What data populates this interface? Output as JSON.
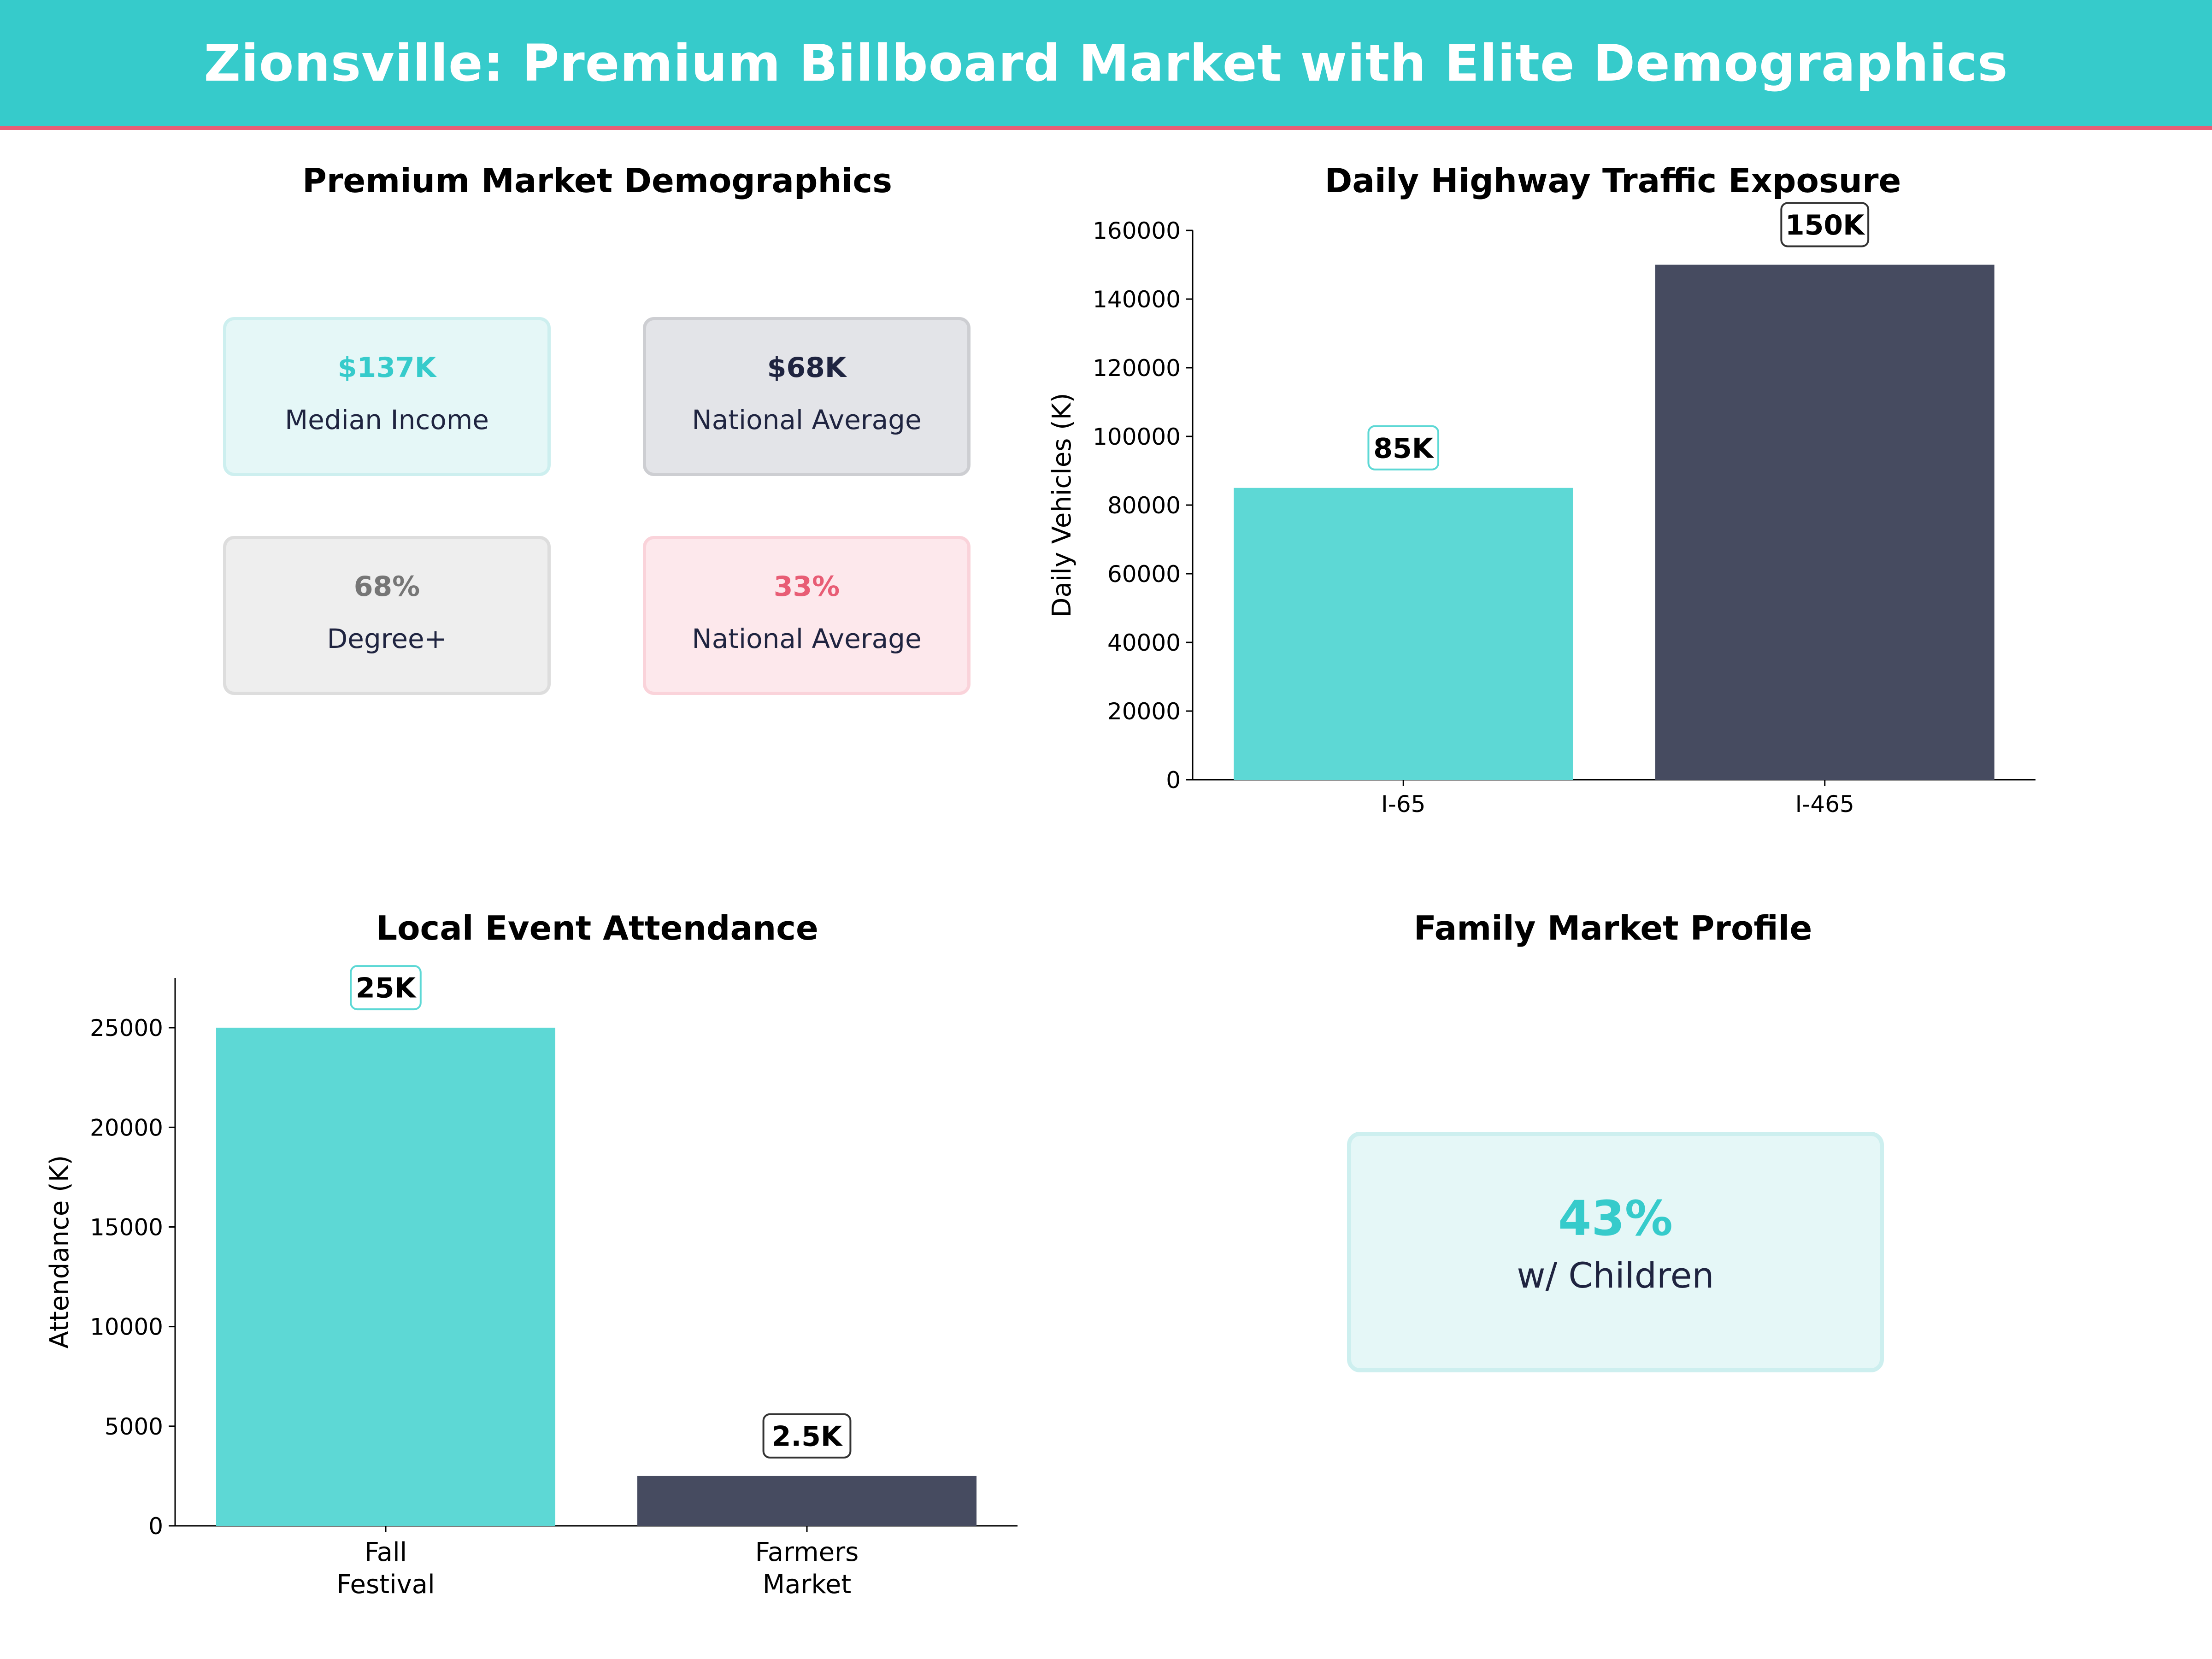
{
  "header": {
    "title": "Zionsville: Premium Billboard Market with Elite Demographics"
  },
  "colors": {
    "accent": "#36CBCB",
    "dark": "#464B60",
    "pink": "#E85D75",
    "gray": "#767676"
  },
  "demographics": {
    "title": "Premium Market Demographics",
    "cards": [
      {
        "value": "$137K",
        "label": "Median Income",
        "color": "#36CBCB"
      },
      {
        "value": "$68K",
        "label": "National Average",
        "color": "#1F2440"
      },
      {
        "value": "68%",
        "label": "Degree+",
        "color": "#767676"
      },
      {
        "value": "33%",
        "label": "National Average",
        "color": "#E85D75"
      }
    ]
  },
  "family": {
    "title": "Family Market Profile",
    "value": "43%",
    "label": "w/ Children"
  },
  "chart_data": [
    {
      "type": "bar",
      "title": "Daily Highway Traffic Exposure",
      "xlabel": "",
      "ylabel": "Daily Vehicles (K)",
      "categories": [
        "I-65",
        "I-465"
      ],
      "values": [
        85000,
        150000
      ],
      "data_labels": [
        "85K",
        "150K"
      ],
      "colors": [
        "#5DD8D5",
        "#464B60"
      ],
      "ylim": [
        0,
        160000
      ],
      "yticks": [
        0,
        20000,
        40000,
        60000,
        80000,
        100000,
        120000,
        140000,
        160000
      ],
      "grid": false
    },
    {
      "type": "bar",
      "title": "Local Event Attendance",
      "xlabel": "",
      "ylabel": "Attendance (K)",
      "categories": [
        [
          "Fall",
          "Festival"
        ],
        [
          "Farmers",
          "Market"
        ]
      ],
      "values": [
        25000,
        2500
      ],
      "data_labels": [
        "25K",
        "2.5K"
      ],
      "colors": [
        "#5DD8D5",
        "#464B60"
      ],
      "ylim": [
        0,
        27500
      ],
      "yticks": [
        0,
        5000,
        10000,
        15000,
        20000,
        25000
      ],
      "grid": false
    }
  ]
}
